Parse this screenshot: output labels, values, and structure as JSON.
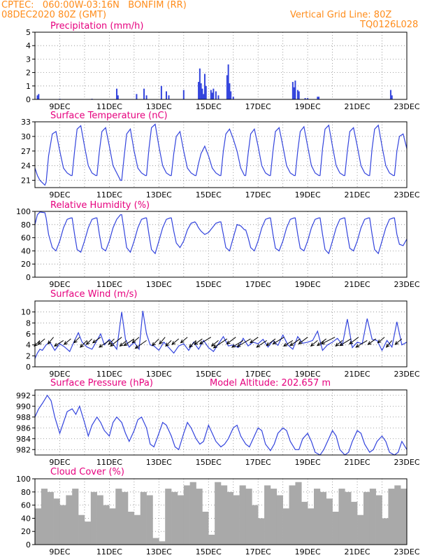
{
  "header": {
    "line1": "CPTEC:   060:00W-03:16N   BONFIM (RR)",
    "line2": "08DEC2020 80Z (GMT)",
    "grid_note": "Vertical Grid Line: 80Z",
    "run_id": "TQ0126L028"
  },
  "colors": {
    "header": "#ff8c1a",
    "title": "#e6007e",
    "series": "#3344dd",
    "cloud": "#a9a9a9"
  },
  "chart_data": [
    {
      "id": "precip",
      "type": "bar",
      "title": "Precipitation (mm/h)",
      "ylim": [
        0,
        5
      ],
      "yticks": [
        0,
        1,
        2,
        3,
        4,
        5
      ],
      "xlim": [
        8.0,
        23.0
      ],
      "xticks": [
        "9DEC",
        "11DEC",
        "13DEC",
        "15DEC",
        "17DEC",
        "19DEC",
        "21DEC",
        "23DEC"
      ],
      "x": [
        8.1,
        8.15,
        9.0,
        10.3,
        11.3,
        11.35,
        12.1,
        12.4,
        12.5,
        13.1,
        13.3,
        13.4,
        14.0,
        14.6,
        14.65,
        14.7,
        14.75,
        14.8,
        14.85,
        14.9,
        15.1,
        15.15,
        15.2,
        15.3,
        15.4,
        15.75,
        15.8,
        15.85,
        15.9,
        16.0,
        18.4,
        18.45,
        18.5,
        18.6,
        18.65,
        18.9,
        19.0,
        19.4,
        19.45,
        22.35,
        22.4
      ],
      "y": [
        0.3,
        0.4,
        0.05,
        0.05,
        0.8,
        0.3,
        0.4,
        0.8,
        0.3,
        1.0,
        0.6,
        0.3,
        0.7,
        1.3,
        2.3,
        1.2,
        0.8,
        0.4,
        1.9,
        1.0,
        0.7,
        0.5,
        0.8,
        0.6,
        0.3,
        1.8,
        2.6,
        1.2,
        0.6,
        0.2,
        1.3,
        0.9,
        1.4,
        0.7,
        0.6,
        0.1,
        0.1,
        0.2,
        0.2,
        0.7,
        0.3
      ]
    },
    {
      "id": "temp",
      "type": "line",
      "title": "Surface Temperature (nC)",
      "ylim": [
        19.5,
        33
      ],
      "yticks": [
        21,
        24,
        27,
        30,
        33
      ],
      "xlim": [
        8.0,
        23.0
      ],
      "xticks": [
        "9DEC",
        "11DEC",
        "13DEC",
        "15DEC",
        "17DEC",
        "19DEC",
        "21DEC",
        "23DEC"
      ],
      "x": [
        8.0,
        8.1,
        8.2,
        8.4,
        8.45,
        8.55,
        8.7,
        8.85,
        9.0,
        9.15,
        9.3,
        9.45,
        9.5,
        9.6,
        9.7,
        9.85,
        10.0,
        10.15,
        10.3,
        10.45,
        10.5,
        10.6,
        10.7,
        10.85,
        11.0,
        11.15,
        11.3,
        11.45,
        11.5,
        11.6,
        11.7,
        11.85,
        12.0,
        12.15,
        12.3,
        12.45,
        12.5,
        12.6,
        12.7,
        12.85,
        13.0,
        13.15,
        13.3,
        13.45,
        13.5,
        13.6,
        13.7,
        13.85,
        14.0,
        14.15,
        14.3,
        14.45,
        14.5,
        14.6,
        14.7,
        14.85,
        15.0,
        15.15,
        15.3,
        15.45,
        15.5,
        15.6,
        15.7,
        15.85,
        16.0,
        16.15,
        16.3,
        16.45,
        16.5,
        16.6,
        16.7,
        16.85,
        17.0,
        17.15,
        17.3,
        17.45,
        17.5,
        17.6,
        17.7,
        17.85,
        18.0,
        18.15,
        18.3,
        18.45,
        18.5,
        18.6,
        18.7,
        18.85,
        19.0,
        19.15,
        19.3,
        19.45,
        19.5,
        19.6,
        19.7,
        19.85,
        20.0,
        20.15,
        20.3,
        20.45,
        20.5,
        20.6,
        20.7,
        20.85,
        21.0,
        21.15,
        21.3,
        21.45,
        21.5,
        21.6,
        21.7,
        21.85,
        22.0,
        22.15,
        22.3,
        22.45,
        22.5,
        22.6,
        22.7,
        22.85,
        23.0
      ],
      "y": [
        23.5,
        22.0,
        21.0,
        20.0,
        20.6,
        26.0,
        30.5,
        31.0,
        27.0,
        23.5,
        22.5,
        22.0,
        22.0,
        27.0,
        31.5,
        32.2,
        28.0,
        24.0,
        22.5,
        22.0,
        22.0,
        27.0,
        31.0,
        31.8,
        28.0,
        24.0,
        22.5,
        21.0,
        21.0,
        26.0,
        30.5,
        31.5,
        27.0,
        23.5,
        22.5,
        22.0,
        22.0,
        27.5,
        31.8,
        32.5,
        28.0,
        24.0,
        22.5,
        22.0,
        22.0,
        26.5,
        30.0,
        31.0,
        27.0,
        23.5,
        22.5,
        22.0,
        22.0,
        24.5,
        26.5,
        28.0,
        26.0,
        23.5,
        22.5,
        22.0,
        22.0,
        27.0,
        30.5,
        31.5,
        29.5,
        27.0,
        23.5,
        22.0,
        22.0,
        26.5,
        30.5,
        31.5,
        28.0,
        24.0,
        22.5,
        22.0,
        22.0,
        27.0,
        31.0,
        31.8,
        28.0,
        24.0,
        22.5,
        22.0,
        22.0,
        27.0,
        31.0,
        32.0,
        28.0,
        24.0,
        22.5,
        22.0,
        22.0,
        27.5,
        31.5,
        32.3,
        28.0,
        24.0,
        22.5,
        22.0,
        22.0,
        27.0,
        31.0,
        31.8,
        28.0,
        24.0,
        22.5,
        22.0,
        22.0,
        27.5,
        31.5,
        32.3,
        28.0,
        24.0,
        22.5,
        22.0,
        22.0,
        27.0,
        30.0,
        30.5,
        27.5
      ]
    },
    {
      "id": "rh",
      "type": "line",
      "title": "Relative Humidity (%)",
      "ylim": [
        0,
        100
      ],
      "yticks": [
        0,
        20,
        40,
        60,
        80,
        100
      ],
      "xlim": [
        8.0,
        23.0
      ],
      "xticks": [
        "9DEC",
        "11DEC",
        "13DEC",
        "15DEC",
        "17DEC",
        "19DEC",
        "21DEC",
        "23DEC"
      ],
      "x": [
        8.0,
        8.1,
        8.2,
        8.4,
        8.45,
        8.55,
        8.7,
        8.85,
        9.0,
        9.15,
        9.3,
        9.45,
        9.5,
        9.6,
        9.7,
        9.85,
        10.0,
        10.15,
        10.3,
        10.45,
        10.5,
        10.6,
        10.7,
        10.85,
        11.0,
        11.15,
        11.3,
        11.45,
        11.5,
        11.6,
        11.7,
        11.85,
        12.0,
        12.15,
        12.3,
        12.45,
        12.5,
        12.6,
        12.7,
        12.85,
        13.0,
        13.15,
        13.3,
        13.45,
        13.5,
        13.6,
        13.7,
        13.85,
        14.0,
        14.15,
        14.3,
        14.45,
        14.5,
        14.6,
        14.7,
        14.85,
        15.0,
        15.15,
        15.3,
        15.45,
        15.5,
        15.6,
        15.7,
        15.85,
        16.0,
        16.15,
        16.3,
        16.45,
        16.5,
        16.6,
        16.7,
        16.85,
        17.0,
        17.15,
        17.3,
        17.45,
        17.5,
        17.6,
        17.7,
        17.85,
        18.0,
        18.15,
        18.3,
        18.45,
        18.5,
        18.6,
        18.7,
        18.85,
        19.0,
        19.15,
        19.3,
        19.45,
        19.5,
        19.6,
        19.7,
        19.85,
        20.0,
        20.15,
        20.3,
        20.45,
        20.5,
        20.6,
        20.7,
        20.85,
        21.0,
        21.15,
        21.3,
        21.45,
        21.5,
        21.6,
        21.7,
        21.85,
        22.0,
        22.15,
        22.3,
        22.45,
        22.5,
        22.6,
        22.7,
        22.85,
        23.0
      ],
      "y": [
        80,
        95,
        99,
        98,
        90,
        65,
        45,
        40,
        55,
        75,
        88,
        90,
        90,
        65,
        42,
        38,
        55,
        75,
        88,
        90,
        90,
        65,
        44,
        40,
        55,
        75,
        88,
        95,
        95,
        70,
        45,
        38,
        55,
        75,
        88,
        90,
        90,
        65,
        42,
        36,
        55,
        75,
        88,
        90,
        90,
        70,
        52,
        45,
        55,
        72,
        82,
        84,
        82,
        75,
        70,
        65,
        68,
        75,
        82,
        84,
        84,
        65,
        45,
        40,
        60,
        80,
        78,
        72,
        72,
        60,
        45,
        40,
        55,
        75,
        88,
        90,
        90,
        65,
        44,
        40,
        55,
        75,
        88,
        90,
        90,
        65,
        44,
        40,
        55,
        75,
        88,
        90,
        90,
        65,
        42,
        36,
        55,
        75,
        88,
        90,
        90,
        65,
        44,
        40,
        55,
        75,
        88,
        90,
        90,
        65,
        42,
        36,
        55,
        75,
        88,
        90,
        90,
        65,
        50,
        48,
        58
      ]
    },
    {
      "id": "wind",
      "type": "line",
      "title": "Surface Wind (m/s)",
      "ylim": [
        0,
        12
      ],
      "yticks": [
        0,
        2,
        4,
        6,
        8,
        10
      ],
      "xlim": [
        8.0,
        23.0
      ],
      "xticks": [
        "9DEC",
        "11DEC",
        "13DEC",
        "15DEC",
        "17DEC",
        "19DEC",
        "21DEC",
        "23DEC"
      ],
      "x": [
        8.0,
        8.1,
        8.2,
        8.3,
        8.45,
        8.6,
        8.8,
        9.0,
        9.2,
        9.4,
        9.6,
        9.75,
        9.9,
        10.1,
        10.3,
        10.5,
        10.65,
        10.8,
        11.0,
        11.1,
        11.3,
        11.5,
        11.65,
        11.8,
        12.0,
        12.2,
        12.35,
        12.5,
        12.65,
        12.8,
        13.0,
        13.2,
        13.4,
        13.6,
        13.8,
        14.0,
        14.2,
        14.4,
        14.6,
        14.8,
        15.0,
        15.2,
        15.4,
        15.6,
        15.8,
        16.0,
        16.2,
        16.4,
        16.6,
        16.8,
        17.0,
        17.2,
        17.4,
        17.6,
        17.8,
        18.0,
        18.2,
        18.4,
        18.6,
        18.8,
        19.0,
        19.2,
        19.4,
        19.6,
        19.8,
        20.0,
        20.2,
        20.4,
        20.6,
        20.8,
        21.0,
        21.2,
        21.4,
        21.6,
        21.8,
        22.0,
        22.2,
        22.4,
        22.6,
        22.8,
        23.0
      ],
      "y": [
        1.5,
        2.5,
        3.2,
        3.0,
        4.0,
        4.5,
        3.0,
        4.2,
        3.6,
        2.8,
        4.8,
        6.2,
        4.5,
        3.6,
        3.2,
        4.8,
        6.0,
        4.0,
        5.0,
        4.5,
        3.2,
        10.0,
        5.0,
        3.6,
        4.5,
        3.2,
        10.2,
        6.0,
        4.0,
        3.8,
        3.0,
        4.5,
        3.5,
        2.5,
        3.8,
        4.2,
        3.0,
        4.5,
        3.2,
        4.8,
        3.5,
        2.8,
        4.2,
        5.5,
        3.8,
        4.0,
        3.5,
        5.2,
        3.8,
        4.5,
        4.2,
        5.0,
        3.6,
        4.8,
        3.9,
        5.8,
        4.0,
        3.2,
        5.5,
        4.3,
        4.5,
        4.8,
        6.5,
        3.0,
        4.0,
        4.5,
        5.2,
        4.0,
        8.7,
        3.5,
        4.5,
        4.2,
        8.8,
        5.0,
        4.8,
        3.0,
        4.8,
        3.6,
        8.2,
        4.0,
        4.5
      ],
      "vectors_x": [
        8.2,
        8.4,
        8.75,
        9.15,
        9.45,
        9.8,
        10.1,
        10.3,
        10.65,
        11.0,
        11.2,
        11.5,
        11.7,
        12.0,
        12.2,
        12.5,
        13.0,
        13.25,
        13.5,
        13.8,
        14.15,
        14.5,
        14.75,
        15.1,
        15.4,
        15.75,
        16.1,
        16.4,
        16.7,
        17.0,
        17.35,
        17.7,
        18.05,
        18.4,
        18.7,
        19.0,
        19.4,
        19.75,
        20.1,
        20.4,
        20.75,
        21.05,
        21.4,
        21.75,
        22.1,
        22.4,
        22.8
      ],
      "vectors_u": [
        -0.5,
        -0.6,
        -0.5,
        -0.8,
        -0.6,
        -0.5,
        -0.6,
        -0.5,
        -0.7,
        -0.9,
        -0.5,
        -1.0,
        -0.6,
        -0.9,
        -0.6,
        -1.0,
        -0.6,
        -0.5,
        -0.5,
        -0.6,
        -0.6,
        -0.6,
        -0.7,
        -1.0,
        -0.6,
        -1.2,
        -0.8,
        -1.0,
        -1.2,
        -0.7,
        -0.9,
        -0.8,
        -1.0,
        -0.8,
        -0.9,
        -0.8,
        -0.6,
        -0.8,
        -1.2,
        -0.6,
        -1.0,
        -0.8,
        -1.0,
        -0.7,
        -0.6,
        -0.5,
        -0.6
      ],
      "vectors_v": [
        -0.5,
        -0.5,
        -0.6,
        -0.5,
        -0.5,
        -0.5,
        -0.6,
        -0.5,
        -0.5,
        -0.6,
        -0.5,
        -0.8,
        -0.5,
        -0.6,
        -0.5,
        -0.7,
        -0.6,
        -0.6,
        -0.5,
        -0.5,
        -0.5,
        -0.6,
        -0.5,
        -0.6,
        -0.5,
        -0.8,
        -0.6,
        -0.6,
        -0.7,
        -0.5,
        -0.6,
        -0.6,
        -0.6,
        -0.5,
        -0.6,
        -0.6,
        -0.5,
        -0.6,
        -0.6,
        -0.5,
        -0.6,
        -0.6,
        -0.6,
        -0.5,
        -0.5,
        -0.6,
        -0.5
      ]
    },
    {
      "id": "pressure",
      "type": "line",
      "title": "Surface Pressure (hPa)",
      "annotation": "Model Altitude: 202.657  m",
      "ylim": [
        981,
        993
      ],
      "yticks": [
        982,
        984,
        986,
        988,
        990,
        992
      ],
      "xlim": [
        8.0,
        23.0
      ],
      "xticks": [
        "9DEC",
        "11DEC",
        "13DEC",
        "15DEC",
        "17DEC",
        "19DEC",
        "21DEC",
        "23DEC"
      ],
      "x": [
        8.0,
        8.15,
        8.3,
        8.5,
        8.65,
        8.8,
        9.0,
        9.15,
        9.3,
        9.5,
        9.65,
        9.8,
        10.0,
        10.15,
        10.3,
        10.5,
        10.65,
        10.8,
        11.0,
        11.15,
        11.3,
        11.5,
        11.65,
        11.8,
        12.0,
        12.15,
        12.3,
        12.5,
        12.65,
        12.8,
        13.0,
        13.15,
        13.3,
        13.5,
        13.65,
        13.8,
        14.0,
        14.15,
        14.3,
        14.5,
        14.65,
        14.8,
        15.0,
        15.15,
        15.3,
        15.5,
        15.65,
        15.8,
        16.0,
        16.15,
        16.3,
        16.5,
        16.65,
        16.8,
        17.0,
        17.15,
        17.3,
        17.5,
        17.65,
        17.8,
        18.0,
        18.15,
        18.3,
        18.5,
        18.65,
        18.8,
        19.0,
        19.15,
        19.3,
        19.5,
        19.65,
        19.8,
        20.0,
        20.15,
        20.3,
        20.5,
        20.65,
        20.8,
        21.0,
        21.15,
        21.3,
        21.5,
        21.65,
        21.8,
        22.0,
        22.15,
        22.3,
        22.5,
        22.65,
        22.8,
        23.0
      ],
      "y": [
        988.0,
        989.5,
        990.5,
        992.0,
        991.0,
        988.0,
        985.0,
        987.0,
        989.0,
        989.5,
        988.5,
        990.0,
        987.0,
        984.5,
        986.5,
        988.0,
        987.0,
        985.5,
        984.5,
        987.0,
        988.0,
        987.0,
        985.0,
        983.5,
        985.5,
        987.5,
        988.0,
        986.0,
        983.0,
        982.5,
        985.0,
        987.0,
        986.5,
        984.5,
        982.5,
        982.0,
        985.0,
        987.0,
        986.0,
        984.0,
        983.0,
        983.5,
        986.5,
        985.0,
        983.5,
        982.5,
        983.0,
        984.0,
        986.0,
        986.5,
        984.5,
        983.0,
        982.5,
        984.0,
        986.0,
        985.5,
        983.0,
        981.8,
        983.0,
        985.0,
        986.0,
        985.5,
        983.5,
        982.0,
        982.0,
        984.0,
        985.0,
        983.5,
        981.5,
        981.0,
        982.0,
        983.5,
        985.5,
        984.5,
        982.0,
        981.0,
        981.5,
        983.5,
        985.5,
        985.0,
        983.0,
        981.5,
        982.0,
        983.5,
        984.5,
        983.5,
        981.5,
        981.0,
        981.5,
        983.5,
        982.0
      ]
    },
    {
      "id": "cloud",
      "type": "bar",
      "title": "Cloud Cover (%)",
      "ylim": [
        0,
        100
      ],
      "yticks": [
        0,
        20,
        40,
        60,
        80,
        100
      ],
      "xlim": [
        8.0,
        23.0
      ],
      "xticks": [
        "9DEC",
        "11DEC",
        "13DEC",
        "15DEC",
        "17DEC",
        "19DEC",
        "21DEC",
        "23DEC"
      ],
      "x": [
        8.0,
        8.25,
        8.5,
        8.75,
        9.0,
        9.25,
        9.5,
        9.75,
        10.0,
        10.25,
        10.5,
        10.75,
        11.0,
        11.25,
        11.5,
        11.75,
        12.0,
        12.25,
        12.5,
        12.75,
        13.0,
        13.25,
        13.5,
        13.75,
        14.0,
        14.25,
        14.5,
        14.75,
        15.0,
        15.25,
        15.5,
        15.75,
        16.0,
        16.25,
        16.5,
        16.75,
        17.0,
        17.25,
        17.5,
        17.75,
        18.0,
        18.25,
        18.5,
        18.75,
        19.0,
        19.25,
        19.5,
        19.75,
        20.0,
        20.25,
        20.5,
        20.75,
        21.0,
        21.25,
        21.5,
        21.75,
        22.0,
        22.25,
        22.5,
        22.75
      ],
      "y": [
        55,
        85,
        80,
        70,
        60,
        75,
        85,
        45,
        35,
        80,
        75,
        60,
        55,
        85,
        80,
        50,
        45,
        80,
        75,
        10,
        5,
        85,
        80,
        75,
        90,
        95,
        85,
        50,
        15,
        95,
        90,
        80,
        75,
        90,
        85,
        60,
        40,
        90,
        85,
        75,
        55,
        90,
        95,
        65,
        55,
        85,
        80,
        70,
        50,
        85,
        80,
        65,
        45,
        80,
        85,
        75,
        40,
        85,
        90,
        85
      ]
    }
  ]
}
